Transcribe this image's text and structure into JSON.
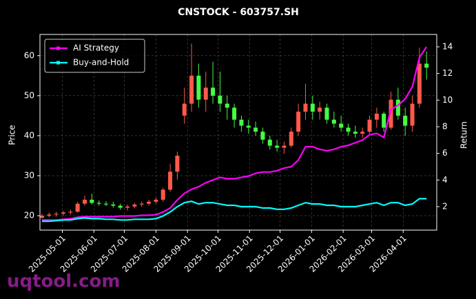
{
  "chart_data": {
    "type": "candlestick",
    "title": "CNSTOCK - 603757.SH",
    "ylabel": "Price",
    "y2label": "Return",
    "watermark": "uqtool.com",
    "x": [
      "2025-04-11",
      "2025-04-18",
      "2025-04-25",
      "2025-05-02",
      "2025-05-09",
      "2025-05-16",
      "2025-05-23",
      "2025-05-30",
      "2025-06-06",
      "2025-06-13",
      "2025-06-20",
      "2025-06-27",
      "2025-07-04",
      "2025-07-11",
      "2025-07-18",
      "2025-07-25",
      "2025-08-01",
      "2025-08-08",
      "2025-08-15",
      "2025-08-22",
      "2025-08-29",
      "2025-09-05",
      "2025-09-12",
      "2025-09-19",
      "2025-09-26",
      "2025-10-03",
      "2025-10-10",
      "2025-10-17",
      "2025-10-24",
      "2025-10-31",
      "2025-11-07",
      "2025-11-14",
      "2025-11-21",
      "2025-11-28",
      "2025-12-05",
      "2025-12-12",
      "2025-12-19",
      "2025-12-26",
      "2026-01-02",
      "2026-01-09",
      "2026-01-16",
      "2026-01-23",
      "2026-01-30",
      "2026-02-06",
      "2026-02-13",
      "2026-02-20",
      "2026-02-27",
      "2026-03-06",
      "2026-03-13",
      "2026-03-20",
      "2026-03-27",
      "2026-04-03",
      "2026-04-10",
      "2026-04-17",
      "2026-04-24"
    ],
    "open": [
      19.5,
      20.0,
      20.3,
      20.5,
      20.8,
      21.0,
      23.0,
      24.0,
      23.2,
      23.0,
      22.8,
      22.5,
      22.0,
      22.3,
      22.8,
      23.0,
      23.5,
      24.0,
      26.5,
      31.0,
      45.0,
      48.0,
      55.0,
      49.0,
      52.0,
      50.0,
      48.0,
      47.0,
      44.0,
      42.5,
      42.0,
      41.0,
      39.0,
      37.5,
      37.0,
      37.5,
      41.0,
      46.0,
      48.0,
      46.0,
      47.0,
      44.0,
      43.0,
      42.0,
      41.0,
      40.5,
      41.0,
      44.0,
      45.5,
      42.0,
      49.0,
      45.0,
      42.5,
      48.0,
      58.0
    ],
    "high": [
      20.5,
      20.8,
      21.0,
      21.2,
      21.5,
      23.5,
      25.0,
      25.5,
      23.8,
      23.6,
      23.5,
      23.0,
      22.8,
      23.2,
      23.5,
      24.0,
      24.5,
      27.0,
      33.0,
      36.0,
      52.0,
      63.0,
      58.0,
      56.0,
      58.5,
      56.0,
      50.0,
      48.0,
      45.0,
      44.0,
      43.5,
      42.0,
      40.0,
      39.0,
      38.5,
      42.0,
      48.0,
      53.0,
      50.0,
      48.5,
      48.0,
      46.0,
      45.0,
      43.0,
      42.5,
      42.0,
      45.0,
      47.0,
      46.0,
      51.0,
      52.0,
      47.0,
      50.0,
      62.0,
      61.0
    ],
    "low": [
      19.2,
      19.6,
      19.8,
      20.0,
      20.3,
      20.8,
      22.5,
      22.8,
      22.5,
      22.4,
      22.0,
      21.5,
      21.3,
      21.8,
      22.2,
      22.5,
      23.0,
      23.5,
      26.0,
      29.0,
      43.0,
      46.0,
      47.0,
      46.0,
      48.0,
      46.0,
      44.0,
      42.0,
      41.0,
      40.5,
      40.0,
      38.0,
      36.5,
      36.0,
      35.5,
      37.0,
      40.0,
      44.0,
      44.0,
      44.0,
      43.0,
      42.0,
      41.0,
      40.0,
      39.5,
      39.5,
      40.5,
      42.0,
      41.0,
      41.5,
      44.0,
      40.0,
      41.0,
      47.0,
      54.0
    ],
    "close": [
      20.0,
      20.3,
      20.5,
      20.8,
      21.0,
      23.0,
      24.0,
      23.2,
      23.0,
      22.8,
      22.5,
      22.0,
      22.3,
      22.8,
      23.0,
      23.5,
      24.0,
      26.5,
      31.0,
      35.0,
      48.0,
      55.0,
      49.0,
      52.0,
      50.0,
      48.0,
      47.0,
      44.0,
      42.5,
      42.0,
      41.0,
      39.0,
      37.5,
      37.0,
      37.5,
      41.0,
      46.0,
      48.0,
      46.0,
      47.0,
      44.0,
      43.0,
      42.0,
      41.0,
      40.5,
      41.0,
      44.0,
      45.5,
      42.0,
      49.0,
      45.0,
      42.5,
      48.0,
      58.0,
      57.0
    ],
    "up_color": "#ff5a4a",
    "down_color": "#44ff44",
    "series": [
      {
        "name": "AI Strategy",
        "color": "#ff00ff",
        "axis": "y2",
        "values": [
          1.0,
          1.0,
          1.0,
          1.05,
          1.1,
          1.2,
          1.25,
          1.25,
          1.25,
          1.25,
          1.25,
          1.3,
          1.3,
          1.3,
          1.35,
          1.35,
          1.4,
          1.6,
          1.9,
          2.5,
          3.0,
          3.3,
          3.5,
          3.8,
          4.0,
          4.2,
          4.1,
          4.1,
          4.2,
          4.3,
          4.5,
          4.6,
          4.6,
          4.7,
          4.9,
          5.0,
          5.5,
          6.5,
          6.5,
          6.3,
          6.2,
          6.3,
          6.5,
          6.6,
          6.8,
          7.0,
          7.4,
          7.5,
          7.2,
          9.3,
          9.6,
          10.1,
          11.0,
          13.2,
          14.0
        ]
      },
      {
        "name": "Buy-and-Hold",
        "color": "#00ffff",
        "axis": "y2",
        "values": [
          0.9,
          0.9,
          0.95,
          1.0,
          1.0,
          1.1,
          1.15,
          1.1,
          1.1,
          1.05,
          1.05,
          1.0,
          1.0,
          1.05,
          1.05,
          1.05,
          1.1,
          1.3,
          1.6,
          2.0,
          2.3,
          2.4,
          2.2,
          2.3,
          2.3,
          2.2,
          2.1,
          2.1,
          2.0,
          2.0,
          2.0,
          1.9,
          1.9,
          1.8,
          1.8,
          1.9,
          2.1,
          2.3,
          2.2,
          2.2,
          2.1,
          2.1,
          2.0,
          2.0,
          2.0,
          2.1,
          2.2,
          2.3,
          2.1,
          2.3,
          2.3,
          2.1,
          2.2,
          2.6,
          2.6
        ]
      }
    ],
    "xlim": [
      "2025-04-09",
      "2026-05-04"
    ],
    "xticks": [
      "2025-05-01",
      "2025-06-01",
      "2025-07-01",
      "2025-08-01",
      "2025-09-01",
      "2025-10-01",
      "2025-11-01",
      "2025-12-01",
      "2026-01-01",
      "2026-02-01",
      "2026-03-01",
      "2026-04-01"
    ],
    "ylim": [
      16.4,
      65.3
    ],
    "yticks": [
      20,
      30,
      40,
      50,
      60
    ],
    "y2lim": [
      0.24,
      14.93
    ],
    "y2ticks": [
      2,
      4,
      6,
      8,
      10,
      12,
      14
    ],
    "grid": true,
    "legend": "upper left"
  }
}
